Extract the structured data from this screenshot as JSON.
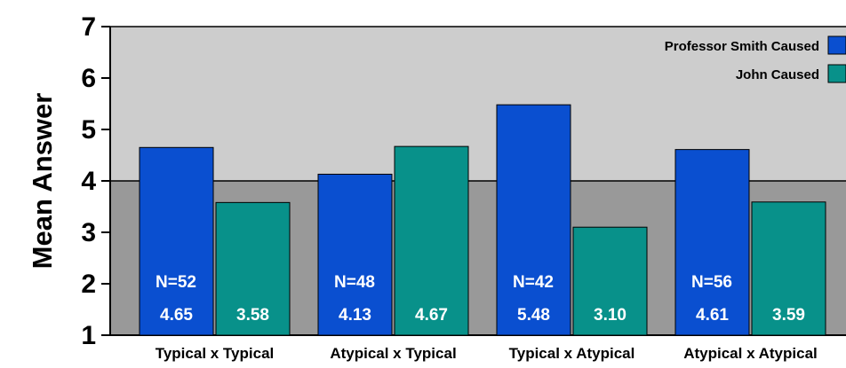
{
  "chart_data": {
    "type": "bar",
    "ylabel": "Mean Answer",
    "xlabel": "",
    "ylim": [
      1,
      7
    ],
    "yticks": [
      1,
      2,
      3,
      4,
      5,
      6,
      7
    ],
    "categories": [
      "Typical x Typical",
      "Atypical x Typical",
      "Typical x Atypical",
      "Atypical x Atypical"
    ],
    "series": [
      {
        "name": "Professor Smith Caused",
        "color": "#0a4fd0",
        "values": [
          4.65,
          4.13,
          5.48,
          4.61
        ],
        "labels": [
          "4.65",
          "4.13",
          "5.48",
          "4.61"
        ]
      },
      {
        "name": "John Caused",
        "color": "#08918a",
        "values": [
          3.58,
          4.67,
          3.1,
          3.59
        ],
        "labels": [
          "3.58",
          "4.67",
          "3.10",
          "3.59"
        ]
      }
    ],
    "n_labels": [
      "N=52",
      "N=48",
      "N=42",
      "N=56"
    ],
    "legend_position": "top-right",
    "background_upper": "#cdcdcd",
    "background_lower": "#999999",
    "background_split_value": 4
  }
}
